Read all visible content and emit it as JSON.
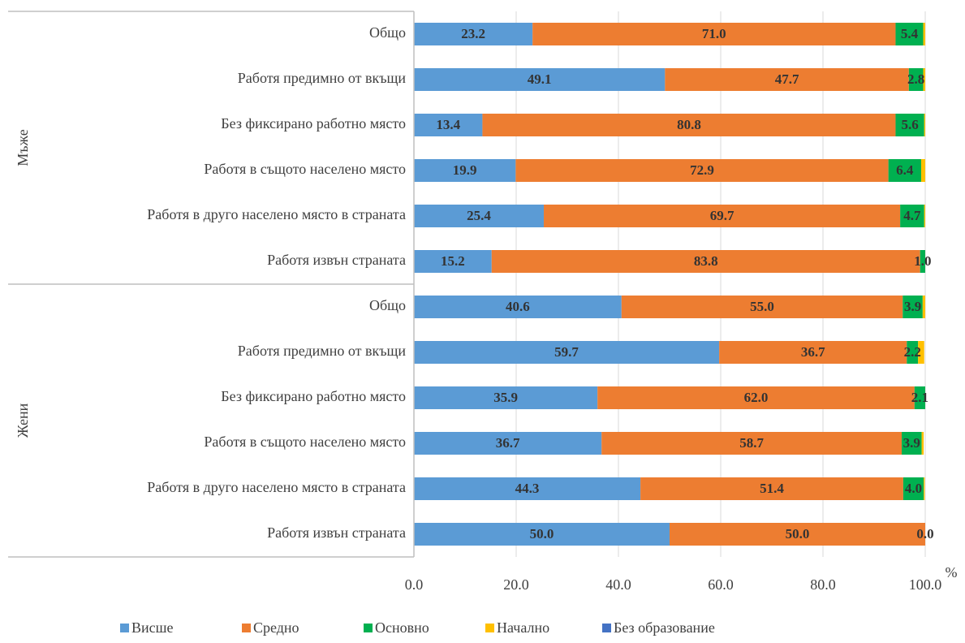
{
  "chart_data": {
    "type": "stacked_bar_horizontal",
    "x_unit": "%",
    "groups": [
      {
        "label": "Мъже",
        "categories": [
          "Общо",
          "Работя предимно от вкъщи",
          "Без фиксирано работно място",
          "Работя в същото населено място",
          "Работя в друго населено място в страната",
          "Работя извън страната"
        ]
      },
      {
        "label": "Жени",
        "categories": [
          "Общо",
          "Работя предимно от вкъщи",
          "Без фиксирано работно място",
          "Работя в същото населено място",
          "Работя в друго населено място в страната",
          "Работя извън страната"
        ]
      }
    ],
    "series": [
      {
        "name": "Висше",
        "color": "#5b9bd5",
        "values": [
          23.2,
          49.1,
          13.4,
          19.9,
          25.4,
          15.2,
          40.6,
          59.7,
          35.9,
          36.7,
          44.3,
          50.0
        ],
        "value_labels": [
          "23.2",
          "49.1",
          "13.4",
          "19.9",
          "25.4",
          "15.2",
          "40.6",
          "59.7",
          "35.9",
          "36.7",
          "44.3",
          "50.0"
        ]
      },
      {
        "name": "Средно",
        "color": "#ed7d31",
        "values": [
          71.0,
          47.7,
          80.8,
          72.9,
          69.7,
          83.8,
          55.0,
          36.7,
          62.0,
          58.7,
          51.4,
          50.0
        ],
        "value_labels": [
          "71.0",
          "47.7",
          "80.8",
          "72.9",
          "69.7",
          "83.8",
          "55.0",
          "36.7",
          "62.0",
          "58.7",
          "51.4",
          "50.0"
        ]
      },
      {
        "name": "Основно",
        "color": "#00b050",
        "values": [
          5.4,
          2.8,
          5.6,
          6.4,
          4.7,
          1.0,
          3.9,
          2.2,
          2.1,
          3.9,
          4.0,
          0.0
        ],
        "value_labels": [
          "5.4",
          "2.8",
          "5.6",
          "6.4",
          "4.7",
          "1.0",
          "3.9",
          "2.2",
          "2.1",
          "3.9",
          "4.0",
          "0.0"
        ]
      },
      {
        "name": "Начално",
        "color": "#ffc000",
        "values": [
          0.4,
          0.4,
          0.2,
          0.8,
          0.2,
          0,
          0.5,
          1.2,
          0,
          0.4,
          0.2,
          0
        ]
      },
      {
        "name": "Без образование",
        "color": "#4472c4",
        "values": [
          0,
          0,
          0,
          0,
          0,
          0,
          0,
          0,
          0,
          0,
          0,
          0
        ]
      }
    ],
    "xlim": [
      0,
      100
    ],
    "xticks": [
      {
        "value": 0,
        "label": "0.0"
      },
      {
        "value": 20,
        "label": "20.0"
      },
      {
        "value": 40,
        "label": "40.0"
      },
      {
        "value": 60,
        "label": "60.0"
      },
      {
        "value": 80,
        "label": "80.0"
      },
      {
        "value": 100,
        "label": "100.0"
      }
    ],
    "grid": true
  }
}
